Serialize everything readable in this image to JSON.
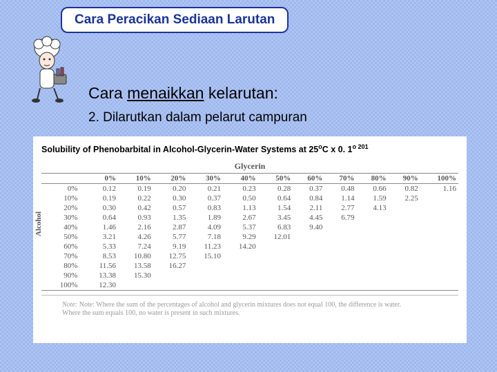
{
  "title": "Cara Peracikan Sediaan Larutan",
  "subtitle_pre": "Cara ",
  "subtitle_u": "menaikkan",
  "subtitle_post": " kelarutan:",
  "item": "2. Dilarutkan dalam pelarut campuran",
  "caption_pre": "Solubility of Phenobarbital in Alcohol-Glycerin-Water Systems at 25",
  "caption_deg1": "o",
  "caption_mid": "C x 0. 1",
  "caption_deg2": "o",
  "caption_sup": " 201",
  "axis_left": "Alcohol",
  "axis_top": "Glycerin",
  "cols": [
    "0%",
    "10%",
    "20%",
    "30%",
    "40%",
    "50%",
    "60%",
    "70%",
    "80%",
    "90%",
    "100%"
  ],
  "rows": [
    {
      "label": "0%",
      "v": [
        "0.12",
        "0.19",
        "0.20",
        "0.21",
        "0.23",
        "0.28",
        "0.37",
        "0.48",
        "0.66",
        "0.82",
        "1.16"
      ]
    },
    {
      "label": "10%",
      "v": [
        "0.19",
        "0.22",
        "0.30",
        "0.37",
        "0.50",
        "0.64",
        "0.84",
        "1.14",
        "1.59",
        "2.25",
        ""
      ]
    },
    {
      "label": "20%",
      "v": [
        "0.30",
        "0.42",
        "0.57",
        "0.83",
        "1.13",
        "1.54",
        "2.11",
        "2.77",
        "4.13",
        "",
        ""
      ]
    },
    {
      "label": "30%",
      "v": [
        "0.64",
        "0.93",
        "1.35",
        "1.89",
        "2.67",
        "3.45",
        "4.45",
        "6.79",
        "",
        "",
        ""
      ]
    },
    {
      "label": "40%",
      "v": [
        "1.46",
        "2.16",
        "2.87",
        "4.09",
        "5.37",
        "6.83",
        "9.40",
        "",
        "",
        "",
        ""
      ]
    },
    {
      "label": "50%",
      "v": [
        "3.21",
        "4.26",
        "5.77",
        "7.18",
        "9.29",
        "12.01",
        "",
        "",
        "",
        "",
        ""
      ]
    },
    {
      "label": "60%",
      "v": [
        "5.33",
        "7.24",
        "9.19",
        "11.23",
        "14.20",
        "",
        "",
        "",
        "",
        "",
        ""
      ]
    },
    {
      "label": "70%",
      "v": [
        "8.53",
        "10.80",
        "12.75",
        "15.10",
        "",
        "",
        "",
        "",
        "",
        "",
        ""
      ]
    },
    {
      "label": "80%",
      "v": [
        "11.56",
        "13.58",
        "16.27",
        "",
        "",
        "",
        "",
        "",
        "",
        "",
        ""
      ]
    },
    {
      "label": "90%",
      "v": [
        "13.38",
        "15.30",
        "",
        "",
        "",
        "",
        "",
        "",
        "",
        "",
        ""
      ]
    },
    {
      "label": "100%",
      "v": [
        "12.30",
        "",
        "",
        "",
        "",
        "",
        "",
        "",
        "",
        "",
        ""
      ]
    }
  ],
  "note1": "Note: Where the sum of the percentages of alcohol and glycerin mixtures does not equal 100, the difference is water.",
  "note2": "Where the sum equals 100, no water is present in such mixtures."
}
